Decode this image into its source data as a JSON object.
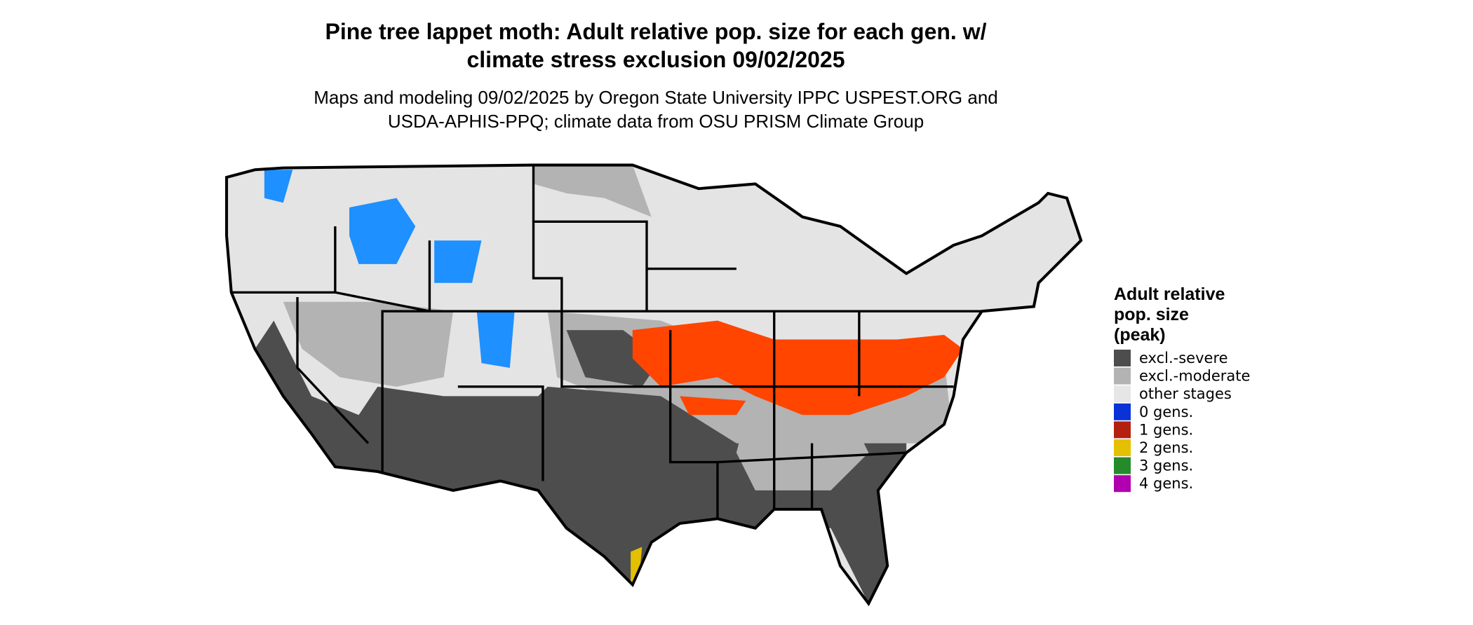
{
  "title": "Pine tree lappet moth: Adult relative pop. size for each gen. w/ climate stress exclusion 09/02/2025",
  "subtitle": "Maps and modeling 09/02/2025 by Oregon State University IPPC USPEST.ORG and USDA-APHIS-PPQ; climate data from OSU PRISM Climate Group",
  "legend": {
    "title": "Adult relative pop. size (peak)",
    "items": [
      {
        "label": "excl.-severe",
        "color": "#4d4d4d"
      },
      {
        "label": "excl.-moderate",
        "color": "#b3b3b3"
      },
      {
        "label": "other stages",
        "color": "#e6e6e6"
      },
      {
        "label": "0 gens.",
        "color": "#0a32d8"
      },
      {
        "label": "1 gens.",
        "color": "#b4200f"
      },
      {
        "label": "2 gens.",
        "color": "#e3c000"
      },
      {
        "label": "3 gens.",
        "color": "#248a2a"
      },
      {
        "label": "4 gens.",
        "color": "#b000b0"
      }
    ]
  }
}
